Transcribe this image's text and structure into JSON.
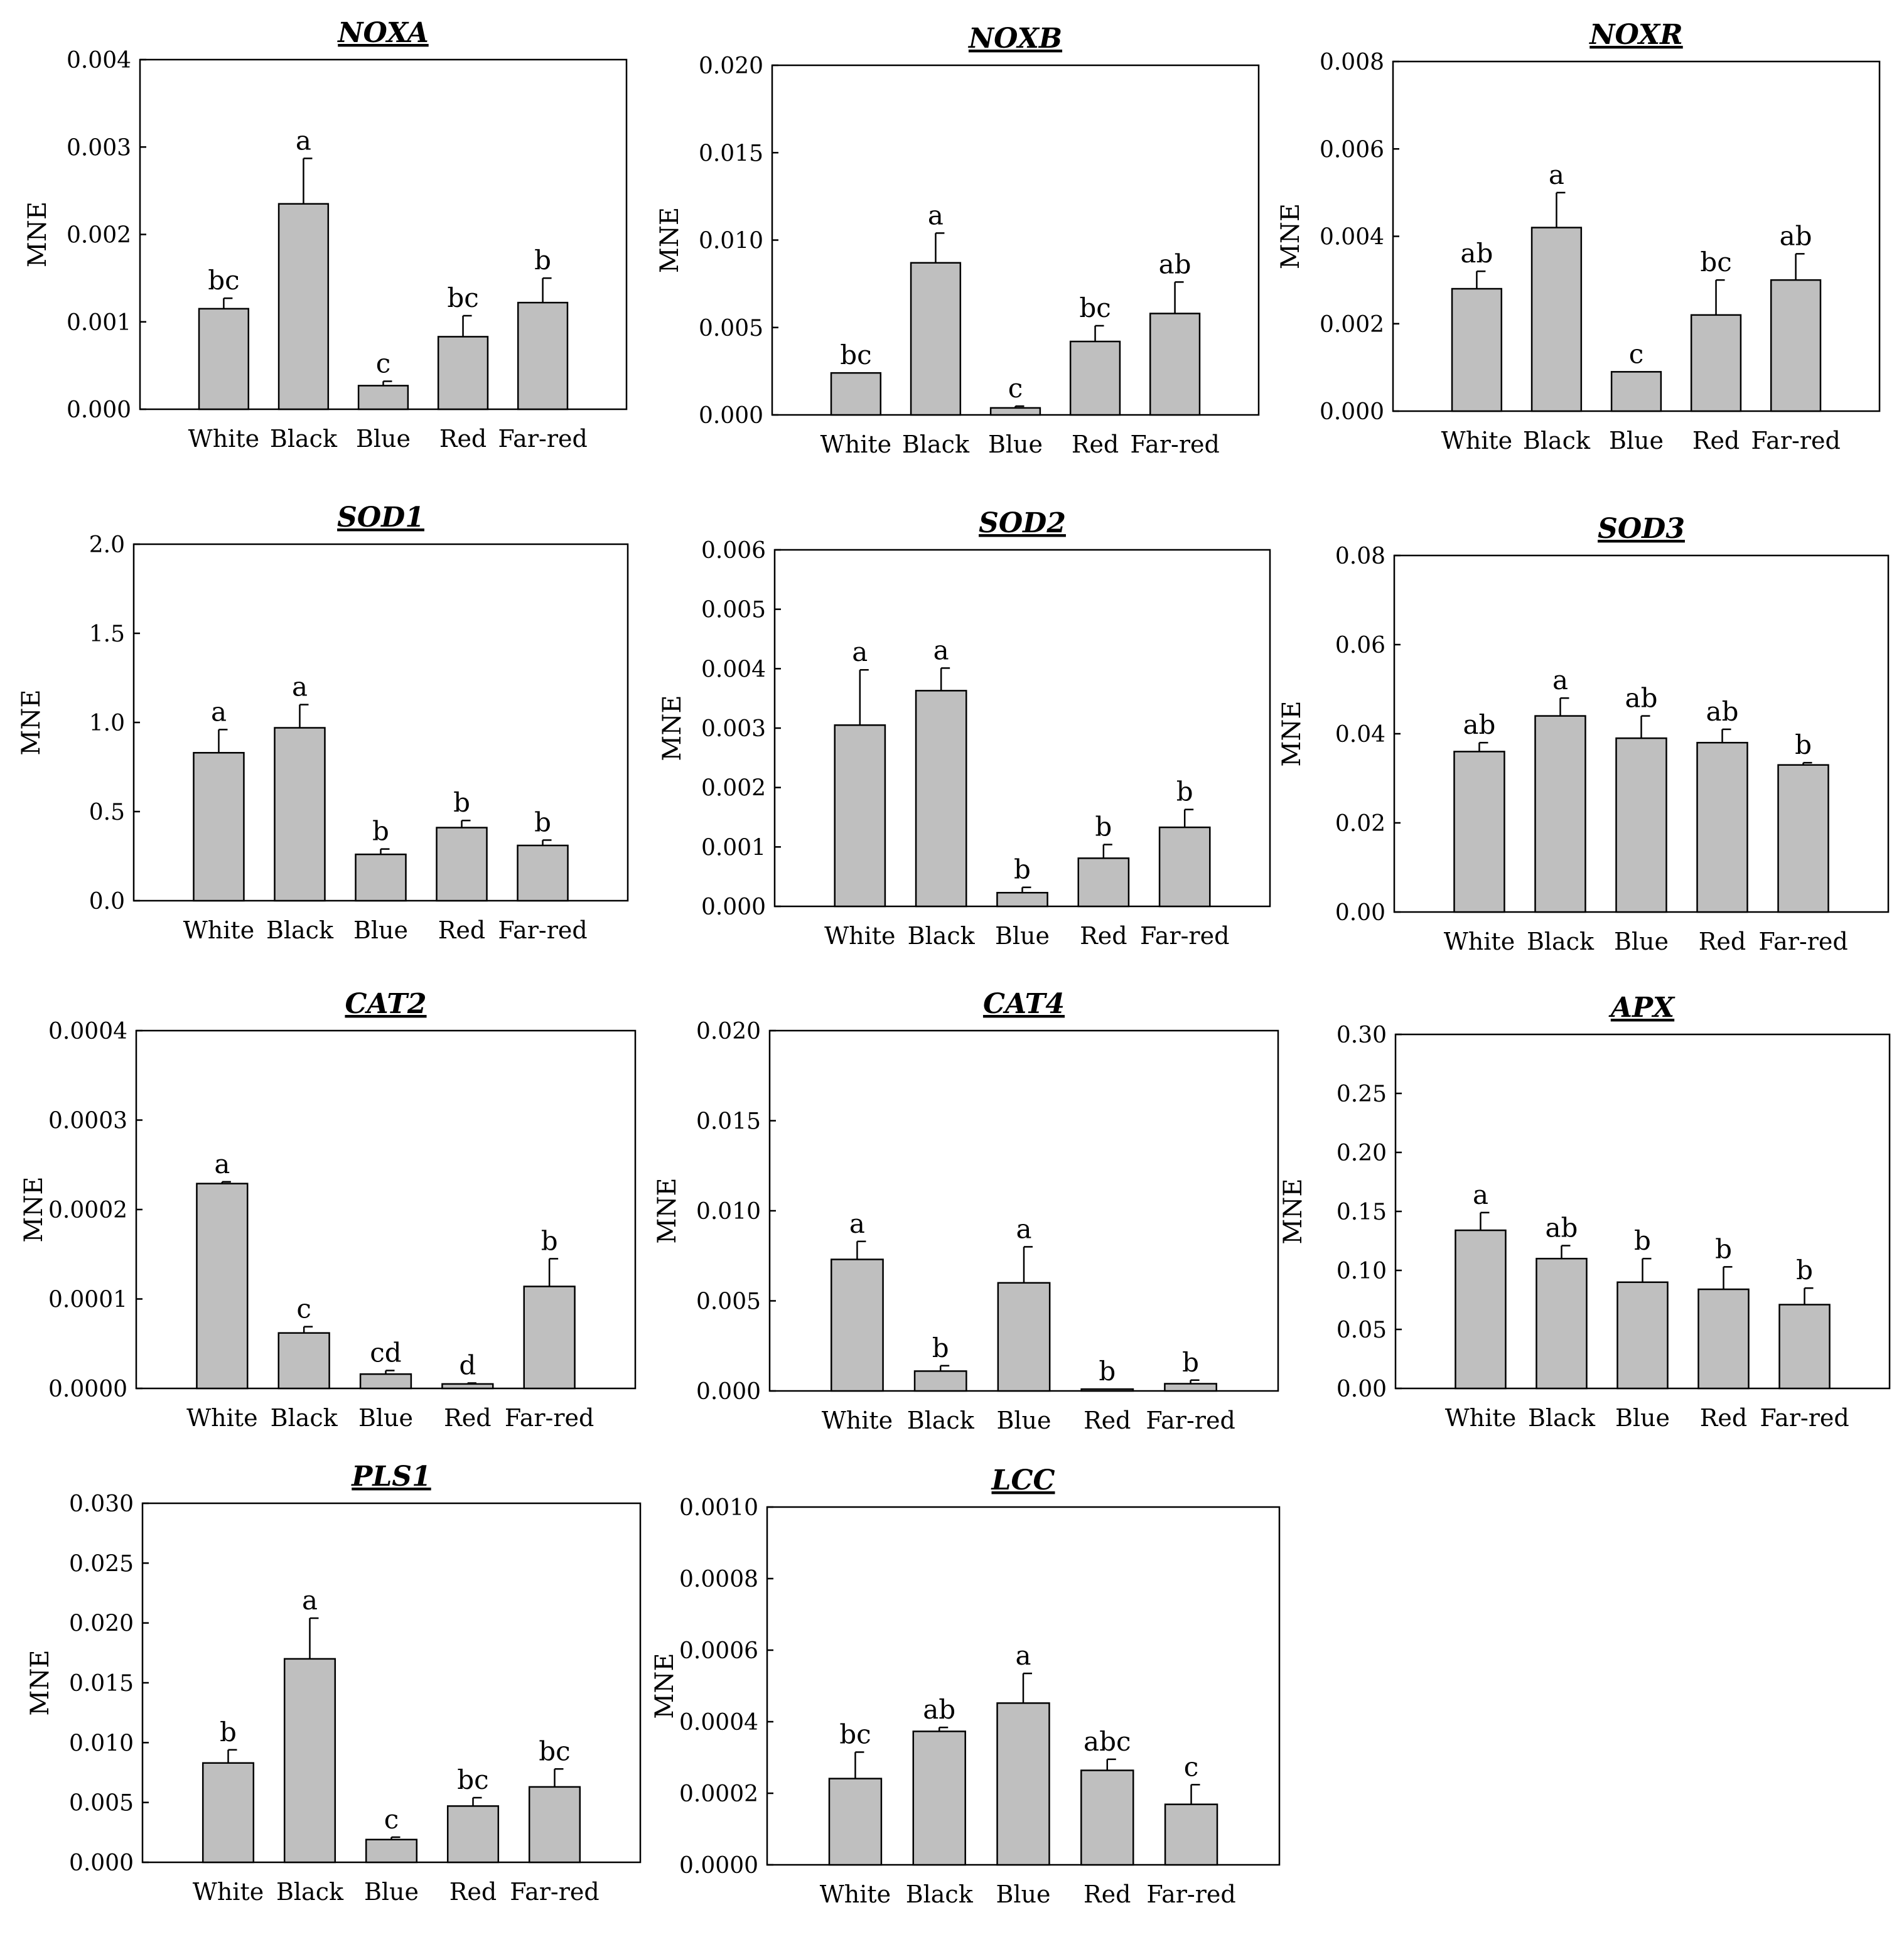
{
  "figure": {
    "chart_count": 11
  },
  "chart_data": [
    {
      "type": "bar",
      "title": "NOXA",
      "ylabel": "MNE",
      "xlabel": "",
      "categories": [
        "White",
        "Black",
        "Blue",
        "Red",
        "Far-red"
      ],
      "values": [
        0.00115,
        0.00235,
        0.00027,
        0.00083,
        0.00122
      ],
      "errors": [
        0.00012,
        0.00052,
        5e-05,
        0.00024,
        0.00028
      ],
      "significance": [
        "bc",
        "a",
        "c",
        "bc",
        "b"
      ],
      "ylim": [
        0,
        0.004
      ],
      "yticks": [
        "0.000",
        "0.001",
        "0.002",
        "0.003",
        "0.004"
      ]
    },
    {
      "type": "bar",
      "title": "NOXB",
      "ylabel": "MNE",
      "xlabel": "",
      "categories": [
        "White",
        "Black",
        "Blue",
        "Red",
        "Far-red"
      ],
      "values": [
        0.0024,
        0.0087,
        0.0004,
        0.0042,
        0.0058
      ],
      "errors": [
        0.0,
        0.0017,
        0.0001,
        0.0009,
        0.0018
      ],
      "significance": [
        "bc",
        "a",
        "c",
        "bc",
        "ab"
      ],
      "ylim": [
        0,
        0.02
      ],
      "yticks": [
        "0.000",
        "0.005",
        "0.010",
        "0.015",
        "0.020"
      ]
    },
    {
      "type": "bar",
      "title": "NOXR",
      "ylabel": "MNE",
      "xlabel": "",
      "categories": [
        "White",
        "Black",
        "Blue",
        "Red",
        "Far-red"
      ],
      "values": [
        0.0028,
        0.0042,
        0.0009,
        0.0022,
        0.003
      ],
      "errors": [
        0.0004,
        0.0008,
        0.0,
        0.0008,
        0.0006
      ],
      "significance": [
        "ab",
        "a",
        "c",
        "bc",
        "ab"
      ],
      "ylim": [
        0,
        0.008
      ],
      "yticks": [
        "0.000",
        "0.002",
        "0.004",
        "0.006",
        "0.008"
      ]
    },
    {
      "type": "bar",
      "title": "SOD1",
      "ylabel": "MNE",
      "xlabel": "",
      "categories": [
        "White",
        "Black",
        "Blue",
        "Red",
        "Far-red"
      ],
      "values": [
        0.83,
        0.97,
        0.26,
        0.41,
        0.31
      ],
      "errors": [
        0.13,
        0.13,
        0.03,
        0.04,
        0.03
      ],
      "significance": [
        "a",
        "a",
        "b",
        "b",
        "b"
      ],
      "ylim": [
        0,
        2.0
      ],
      "yticks": [
        "0.0",
        "0.5",
        "1.0",
        "1.5",
        "2.0"
      ]
    },
    {
      "type": "bar",
      "title": "SOD2",
      "ylabel": "MNE",
      "xlabel": "",
      "categories": [
        "White",
        "Black",
        "Blue",
        "Red",
        "Far-red"
      ],
      "values": [
        0.00305,
        0.00363,
        0.00023,
        0.00081,
        0.00133
      ],
      "errors": [
        0.00093,
        0.00038,
        9e-05,
        0.00023,
        0.0003
      ],
      "significance": [
        "a",
        "a",
        "b",
        "b",
        "b"
      ],
      "ylim": [
        0,
        0.006
      ],
      "yticks": [
        "0.000",
        "0.001",
        "0.002",
        "0.003",
        "0.004",
        "0.005",
        "0.006"
      ]
    },
    {
      "type": "bar",
      "title": "SOD3",
      "ylabel": "MNE",
      "xlabel": "",
      "categories": [
        "White",
        "Black",
        "Blue",
        "Red",
        "Far-red"
      ],
      "values": [
        0.036,
        0.044,
        0.039,
        0.038,
        0.033
      ],
      "errors": [
        0.002,
        0.004,
        0.005,
        0.003,
        0.0005
      ],
      "significance": [
        "ab",
        "a",
        "ab",
        "ab",
        "b"
      ],
      "ylim": [
        0,
        0.08
      ],
      "yticks": [
        "0.00",
        "0.02",
        "0.04",
        "0.06",
        "0.08"
      ]
    },
    {
      "type": "bar",
      "title": "CAT2",
      "ylabel": "MNE",
      "xlabel": "",
      "categories": [
        "White",
        "Black",
        "Blue",
        "Red",
        "Far-red"
      ],
      "values": [
        0.000229,
        6.2e-05,
        1.6e-05,
        5e-06,
        0.000114
      ],
      "errors": [
        2e-06,
        7e-06,
        4e-06,
        1e-06,
        3.1e-05
      ],
      "significance": [
        "a",
        "c",
        "cd",
        "d",
        "b"
      ],
      "ylim": [
        0,
        0.0004
      ],
      "yticks": [
        "0.0000",
        "0.0001",
        "0.0002",
        "0.0003",
        "0.0004"
      ]
    },
    {
      "type": "bar",
      "title": "CAT4",
      "ylabel": "MNE",
      "xlabel": "",
      "categories": [
        "White",
        "Black",
        "Blue",
        "Red",
        "Far-red"
      ],
      "values": [
        0.0073,
        0.0011,
        0.006,
        0.0001,
        0.0004
      ],
      "errors": [
        0.001,
        0.0003,
        0.002,
        0.0,
        0.0002
      ],
      "significance": [
        "a",
        "b",
        "a",
        "b",
        "b"
      ],
      "ylim": [
        0,
        0.02
      ],
      "yticks": [
        "0.000",
        "0.005",
        "0.010",
        "0.015",
        "0.020"
      ]
    },
    {
      "type": "bar",
      "title": "APX",
      "ylabel": "MNE",
      "xlabel": "",
      "categories": [
        "White",
        "Black",
        "Blue",
        "Red",
        "Far-red"
      ],
      "values": [
        0.134,
        0.11,
        0.09,
        0.084,
        0.071
      ],
      "errors": [
        0.015,
        0.011,
        0.02,
        0.019,
        0.014
      ],
      "significance": [
        "a",
        "ab",
        "b",
        "b",
        "b"
      ],
      "ylim": [
        0,
        0.3
      ],
      "yticks": [
        "0.00",
        "0.05",
        "0.10",
        "0.15",
        "0.20",
        "0.25",
        "0.30"
      ]
    },
    {
      "type": "bar",
      "title": "PLS1",
      "ylabel": "MNE",
      "xlabel": "",
      "categories": [
        "White",
        "Black",
        "Blue",
        "Red",
        "Far-red"
      ],
      "values": [
        0.0083,
        0.017,
        0.0019,
        0.0047,
        0.0063
      ],
      "errors": [
        0.0011,
        0.0034,
        0.0002,
        0.0007,
        0.0015
      ],
      "significance": [
        "b",
        "a",
        "c",
        "bc",
        "bc"
      ],
      "ylim": [
        0,
        0.03
      ],
      "yticks": [
        "0.000",
        "0.005",
        "0.010",
        "0.015",
        "0.020",
        "0.025",
        "0.030"
      ]
    },
    {
      "type": "bar",
      "title": "LCC",
      "ylabel": "MNE",
      "xlabel": "",
      "categories": [
        "White",
        "Black",
        "Blue",
        "Red",
        "Far-red"
      ],
      "values": [
        0.000241,
        0.000373,
        0.000452,
        0.000264,
        0.000169
      ],
      "errors": [
        7.4e-05,
        1.1e-05,
        8.3e-05,
        3.1e-05,
        5.5e-05
      ],
      "significance": [
        "bc",
        "ab",
        "a",
        "abc",
        "c"
      ],
      "ylim": [
        0,
        0.001
      ],
      "yticks": [
        "0.0000",
        "0.0002",
        "0.0004",
        "0.0006",
        "0.0008",
        "0.0010"
      ]
    }
  ]
}
